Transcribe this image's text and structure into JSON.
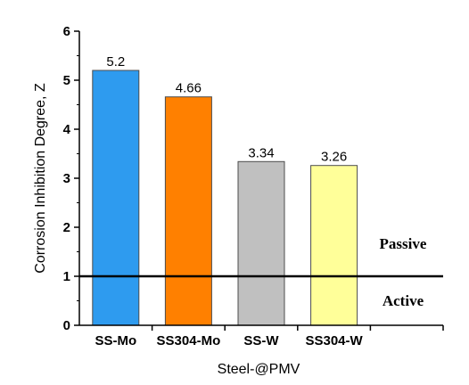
{
  "chart_data": {
    "type": "bar",
    "title": "",
    "xlabel": "Steel-@PMV",
    "ylabel": "Corrosion Inhibition Degree, Z",
    "categories": [
      "SS-Mo",
      "SS304-Mo",
      "SS-W",
      "SS304-W"
    ],
    "values": [
      5.2,
      4.66,
      3.34,
      3.26
    ],
    "data_labels": [
      "5.2",
      "4.66",
      "3.34",
      "3.26"
    ],
    "bar_colors": [
      "#2E9BEF",
      "#FF8000",
      "#C0C0C0",
      "#FFFF99"
    ],
    "ylim": [
      0,
      6
    ],
    "yticks": [
      "0",
      "1",
      "2",
      "3",
      "4",
      "5",
      "6"
    ],
    "grid": false,
    "reference_line": {
      "value": 1,
      "color": "#000000"
    },
    "annotations": [
      {
        "name": "passive",
        "text": "Passive"
      },
      {
        "name": "active",
        "text": "Active"
      }
    ]
  }
}
